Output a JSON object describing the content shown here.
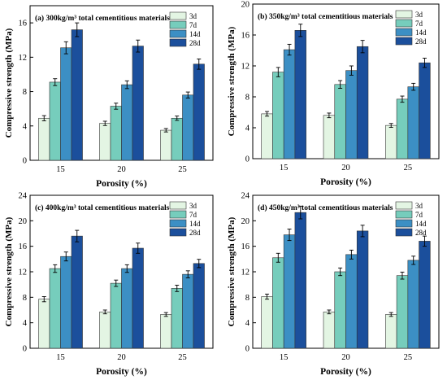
{
  "chart_data": [
    {
      "type": "bar",
      "panel": "(a)",
      "title": "300kg/m³ total cementitious materials",
      "xlabel": "Porosity (%)",
      "ylabel": "Compressive strength (MPa)",
      "categories": [
        "15",
        "20",
        "25"
      ],
      "ylim": [
        0,
        18
      ],
      "yticks": [
        0,
        4,
        8,
        12,
        16
      ],
      "legend_position": "top-right",
      "series": [
        {
          "name": "3d",
          "values": [
            4.9,
            4.3,
            3.5
          ],
          "errors": [
            0.3,
            0.25,
            0.2
          ]
        },
        {
          "name": "7d",
          "values": [
            9.1,
            6.3,
            4.9
          ],
          "errors": [
            0.4,
            0.35,
            0.25
          ]
        },
        {
          "name": "14d",
          "values": [
            13.1,
            8.8,
            7.6
          ],
          "errors": [
            0.7,
            0.45,
            0.35
          ]
        },
        {
          "name": "28d",
          "values": [
            15.2,
            13.3,
            11.2
          ],
          "errors": [
            0.8,
            0.7,
            0.6
          ]
        }
      ]
    },
    {
      "type": "bar",
      "panel": "(b)",
      "title": "350kg/m³ total cementitious materials",
      "xlabel": "Porosity (%)",
      "ylabel": "Compressive strength (MPa)",
      "categories": [
        "15",
        "20",
        "25"
      ],
      "ylim": [
        0,
        20
      ],
      "yticks": [
        0,
        4,
        8,
        12,
        16,
        20
      ],
      "legend_position": "top-right",
      "series": [
        {
          "name": "3d",
          "values": [
            5.8,
            5.6,
            4.3
          ],
          "errors": [
            0.3,
            0.3,
            0.25
          ]
        },
        {
          "name": "7d",
          "values": [
            11.2,
            9.6,
            7.7
          ],
          "errors": [
            0.6,
            0.5,
            0.4
          ]
        },
        {
          "name": "14d",
          "values": [
            14.1,
            11.4,
            9.3
          ],
          "errors": [
            0.7,
            0.6,
            0.45
          ]
        },
        {
          "name": "28d",
          "values": [
            16.6,
            14.5,
            12.4
          ],
          "errors": [
            0.8,
            0.8,
            0.6
          ]
        }
      ]
    },
    {
      "type": "bar",
      "panel": "(c)",
      "title": "400kg/m³ total cementitious materials",
      "xlabel": "Porosity (%)",
      "ylabel": "Compressive strength (MPa)",
      "categories": [
        "15",
        "20",
        "25"
      ],
      "ylim": [
        0,
        24
      ],
      "yticks": [
        0,
        4,
        8,
        12,
        16,
        20,
        24
      ],
      "legend_position": "top-right",
      "series": [
        {
          "name": "3d",
          "values": [
            7.7,
            5.7,
            5.3
          ],
          "errors": [
            0.4,
            0.3,
            0.3
          ]
        },
        {
          "name": "7d",
          "values": [
            12.5,
            10.2,
            9.4
          ],
          "errors": [
            0.6,
            0.5,
            0.5
          ]
        },
        {
          "name": "14d",
          "values": [
            14.4,
            12.5,
            11.6
          ],
          "errors": [
            0.7,
            0.6,
            0.55
          ]
        },
        {
          "name": "28d",
          "values": [
            17.6,
            15.7,
            13.3
          ],
          "errors": [
            0.9,
            0.8,
            0.65
          ]
        }
      ]
    },
    {
      "type": "bar",
      "panel": "(d)",
      "title": "450kg/m³ total cementitious materials",
      "xlabel": "Porosity (%)",
      "ylabel": "Compressive strength (MPa)",
      "categories": [
        "15",
        "20",
        "25"
      ],
      "ylim": [
        0,
        24
      ],
      "yticks": [
        0,
        4,
        8,
        12,
        16,
        20,
        24
      ],
      "legend_position": "top-right",
      "series": [
        {
          "name": "3d",
          "values": [
            8.1,
            5.7,
            5.3
          ],
          "errors": [
            0.4,
            0.3,
            0.3
          ]
        },
        {
          "name": "7d",
          "values": [
            14.2,
            12.0,
            11.4
          ],
          "errors": [
            0.7,
            0.6,
            0.55
          ]
        },
        {
          "name": "14d",
          "values": [
            17.8,
            14.7,
            13.8
          ],
          "errors": [
            0.9,
            0.7,
            0.65
          ]
        },
        {
          "name": "28d",
          "values": [
            21.3,
            18.4,
            16.8
          ],
          "errors": [
            1.0,
            0.9,
            0.8
          ]
        }
      ]
    }
  ],
  "series_colors": {
    "3d": "#e3f5e3",
    "7d": "#76cdbc",
    "14d": "#3c8fc4",
    "28d": "#1b4f9c"
  }
}
